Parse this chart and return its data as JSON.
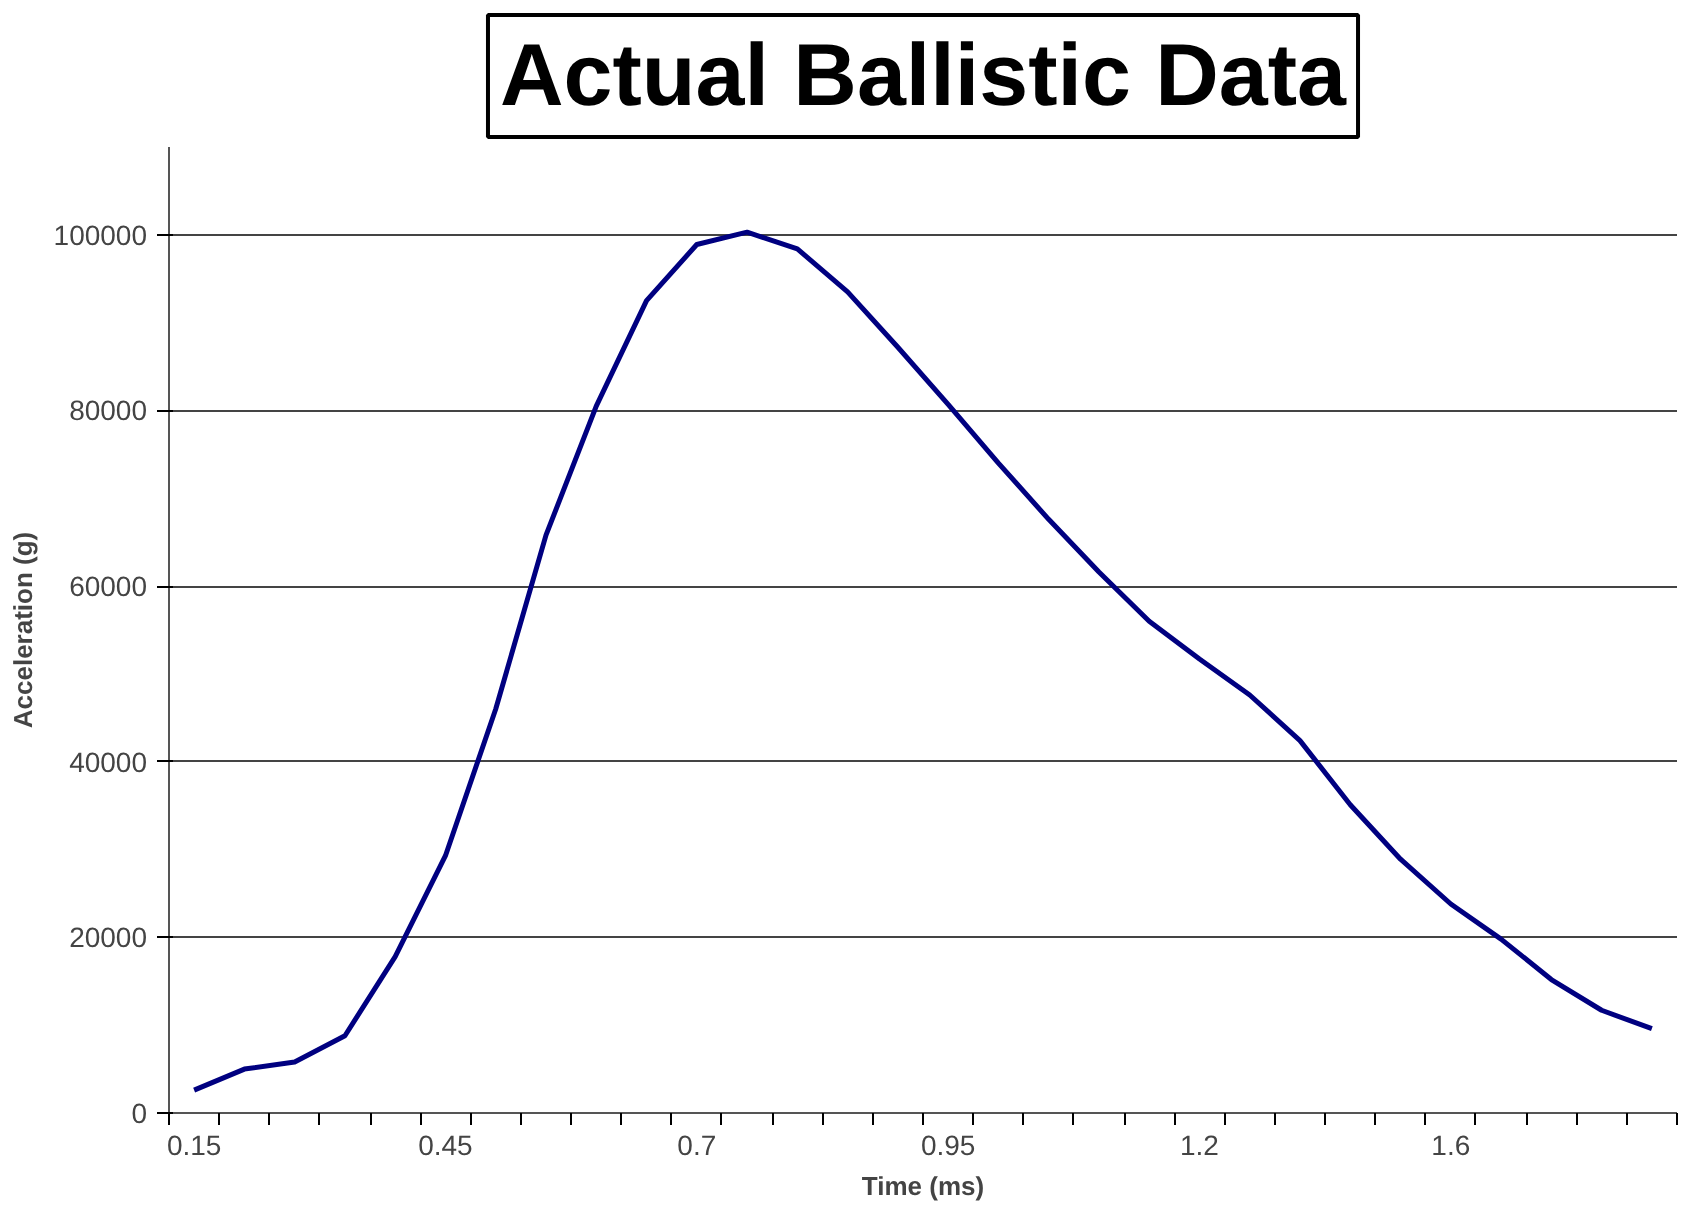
{
  "chart_data": {
    "type": "line",
    "title": "Actual Ballistic Data",
    "xlabel": "Time (ms)",
    "ylabel": "Acceleration (g)",
    "categories": [
      "0.15",
      null,
      null,
      null,
      null,
      "0.45",
      null,
      null,
      null,
      null,
      "0.7",
      null,
      null,
      null,
      null,
      "0.95",
      null,
      null,
      null,
      null,
      "1.2",
      null,
      null,
      null,
      null,
      "1.6",
      null,
      null,
      null,
      null
    ],
    "series": [
      {
        "color": "#000080",
        "values": [
          2600,
          5000,
          5800,
          8800,
          17800,
          29300,
          46000,
          65800,
          80500,
          92500,
          98900,
          100300,
          98400,
          93500,
          87200,
          80700,
          74000,
          67600,
          61600,
          56000,
          51700,
          47600,
          42400,
          35100,
          28900,
          23800,
          19800,
          15200,
          11700,
          9600
        ]
      }
    ],
    "ylim": [
      0,
      110000
    ],
    "yticks": [
      0,
      20000,
      40000,
      60000,
      80000,
      100000
    ],
    "grid": "y",
    "marker": "none",
    "line_style": "solid"
  }
}
